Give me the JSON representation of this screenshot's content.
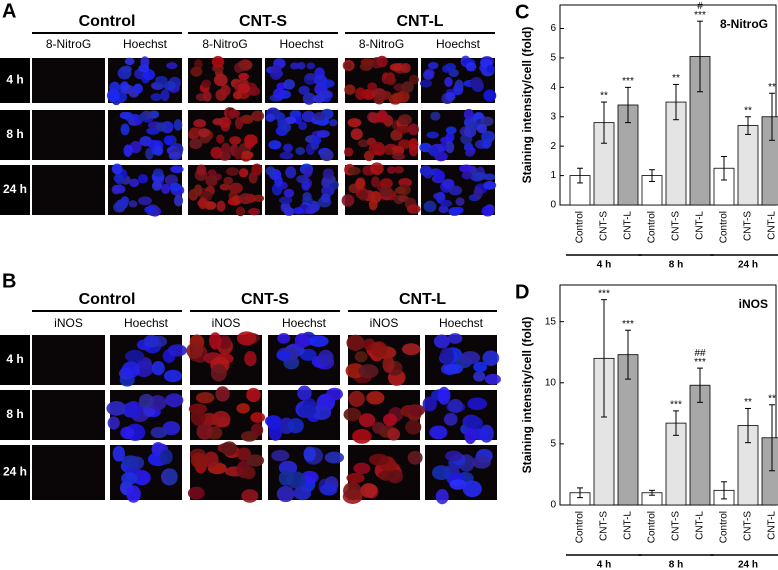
{
  "panels": [
    {
      "letter": "A",
      "groups": [
        "Control",
        "CNT-S",
        "CNT-L"
      ],
      "stains": [
        "8-NitroG",
        "Hoechst"
      ],
      "rows": [
        "4 h",
        "8 h",
        "24 h"
      ]
    },
    {
      "letter": "B",
      "groups": [
        "Control",
        "CNT-S",
        "CNT-L"
      ],
      "stains": [
        "iNOS",
        "Hoechst"
      ],
      "rows": [
        "4 h",
        "8 h",
        "24 h"
      ]
    }
  ],
  "chart_data": [
    {
      "type": "bar",
      "letter": "C",
      "label": "8-NitroG",
      "ylabel": "Staining intensity/cell (fold)",
      "categories": [
        "Control",
        "CNT-S",
        "CNT-L",
        "Control",
        "CNT-S",
        "CNT-L",
        "Control",
        "CNT-S",
        "CNT-L"
      ],
      "groups": [
        "4 h",
        "8 h",
        "24 h"
      ],
      "values": [
        1.0,
        2.8,
        3.4,
        1.0,
        3.5,
        5.05,
        1.25,
        2.7,
        3.0
      ],
      "errors": [
        0.25,
        0.7,
        0.6,
        0.2,
        0.6,
        1.2,
        0.4,
        0.3,
        0.8
      ],
      "stars": [
        null,
        "**",
        "***",
        null,
        "**",
        "***",
        null,
        "**",
        "**"
      ],
      "hashes": [
        null,
        null,
        null,
        null,
        null,
        "#",
        null,
        null,
        null
      ],
      "colors": [
        "#ffffff",
        "#e4e4e4",
        "#a8a8a8"
      ],
      "ylim": [
        0,
        6.8
      ],
      "yticks": [
        0,
        1,
        2,
        3,
        4,
        5,
        6
      ]
    },
    {
      "type": "bar",
      "letter": "D",
      "label": "iNOS",
      "ylabel": "Staining intensity/cell (fold)",
      "categories": [
        "Control",
        "CNT-S",
        "CNT-L",
        "Control",
        "CNT-S",
        "CNT-L",
        "Control",
        "CNT-S",
        "CNT-L"
      ],
      "groups": [
        "4 h",
        "8 h",
        "24 h"
      ],
      "values": [
        1.0,
        12.0,
        12.3,
        1.0,
        6.7,
        9.8,
        1.2,
        6.5,
        5.5
      ],
      "errors": [
        0.4,
        4.8,
        2.0,
        0.2,
        1.0,
        1.4,
        0.7,
        1.4,
        2.7
      ],
      "stars": [
        null,
        "***",
        "***",
        null,
        "***",
        "***",
        null,
        "**",
        "**"
      ],
      "hashes": [
        null,
        null,
        null,
        null,
        null,
        "##",
        null,
        null,
        null
      ],
      "colors": [
        "#ffffff",
        "#e4e4e4",
        "#a8a8a8"
      ],
      "ylim": [
        0,
        18
      ],
      "yticks": [
        0,
        5,
        10,
        15
      ]
    }
  ]
}
